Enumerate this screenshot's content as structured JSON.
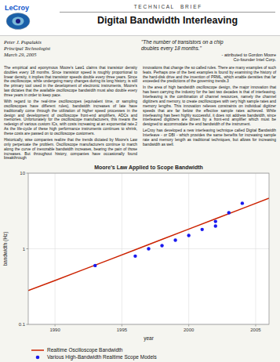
{
  "logo": "LeCroy",
  "header": "T E C H N I C A L     B R I E F",
  "title": "Digital Bandwidth Interleaving",
  "author": [
    "Peter J. Pupalakis",
    "Principal Technologist",
    "March 29, 2005"
  ],
  "quote": "\"The number of transistors on a chip\ndoubles every 18 months.\"",
  "quote_attr": "- attributed to Gordon Moore\nCo-founder Intel Corp.",
  "body_left": [
    "The empirical and eponymous Moore's Law1 claims that transistor density doubles every 18 months. Since transistor speed is roughly proportional to linear density, it implies that transistor speeds double every three years. Since the oscilloscope, while undergoing many changes during its long history, is still the primary tool used in the development of electronic instruments, Moore's law dictates that the available oscilloscope bandwidth must also double every three years in order to keep pace.",
    "With regard to the real-time oscilloscopes (equivalent time, or sampling oscilloscopes have different rules), bandwidth increases of late have traditionally come through the utilization of higher speed processes in the design and development of oscilloscope front-end amplifiers, ADCs and memories. Unfortunately for the oscilloscope manufacturers, this means the redesign of various custom ICs, with costs increasing at an exponential rate.2 As the life-cycle of these high performance instruments continues to shrink, these costs are passed on to oscilloscope customers.",
    "Historically, wise companies realize that the trends dictated by Moore's Law only perpetuate the problem. Oscilloscope manufacturers continue to march along the curve of inexorable bandwidth increases, bearing the pain of those increases. But throughout history, companies have occasionally found breakthrough"
  ],
  "body_right": [
    "innovations that change the so called rules. There are many examples of such feats. Perhaps one of the best examples is found by examining the history of the hard-disk drive and the invention of PRML, which enable densities that far exceeded the predictions of the governing trends.3",
    "In the area of high bandwidth oscilloscope design, the major innovation that has been carrying the industry for the last two decades is that of interleaving. Interleaving is the combination of channel resources, namely the channel digitizers and memory, to create oscilloscopes with very high sample rates and memory lengths. This innovation relieves constraints on individual digitizer speeds that are far below the effective sample rates achieved. While interleaving has been highly successful, it does not address bandwidth, since interleaved digitizers are driven by a front-end amplifier which must be designed to accommodate the end bandwidth of the instrument.",
    "LeCroy has developed a new interleaving technique called Digital Bandwidth Interleave - or DBI - which provides the same benefits for increasing sample rate and memory length as traditional techniques, but allows for increasing bandwidth as well."
  ],
  "chart_data": {
    "type": "line",
    "title": "Moore's Law Applied to Scope Bandwidth",
    "x_label": "year",
    "y_label": "bandwidth (Hz)",
    "log": "y",
    "grid": true,
    "legend": "bottom",
    "xlim": [
      1988,
      2006
    ],
    "xticks": [
      1990,
      1995,
      2000,
      2005
    ],
    "ylim": [
      0.1,
      10
    ],
    "yticks": [
      0.1,
      1,
      10
    ],
    "series": [
      {
        "name": "Realtime Oscilloscope Bandwidth",
        "type": "line",
        "color": "#cc2200",
        "x": [
          1988,
          1990,
          1992,
          1994,
          1996,
          1998,
          2000,
          2002,
          2004,
          2006
        ],
        "values": [
          0.28,
          0.38,
          0.52,
          0.71,
          0.97,
          1.33,
          1.82,
          2.49,
          3.41,
          4.67
        ]
      },
      {
        "name": "Various High-Bandwidth Realtime Scope Models",
        "type": "scatter",
        "color": "#1a1aee",
        "x": [
          1993,
          1996,
          1997,
          1998,
          1999,
          2000,
          2001,
          2002,
          2002,
          2003,
          2004
        ],
        "values": [
          0.6,
          0.8,
          1.0,
          1.1,
          1.3,
          1.5,
          1.8,
          2.0,
          2.3,
          3.0,
          4.0
        ]
      }
    ]
  }
}
